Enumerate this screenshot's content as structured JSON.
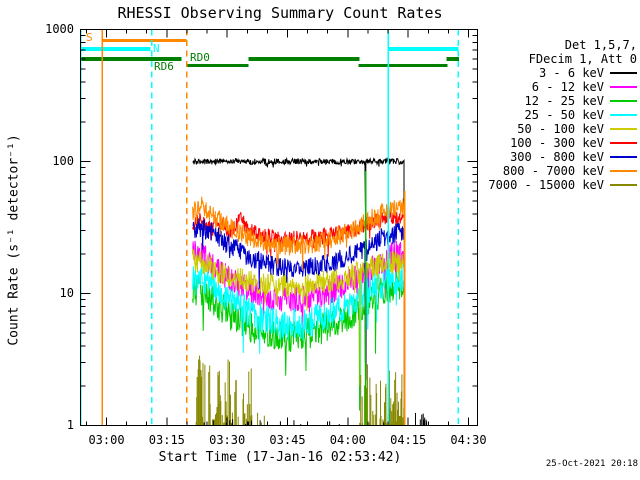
{
  "title": "RHESSI Observing Summary Count Rates",
  "timestamp": "25-Oct-2021 20:18",
  "axes": {
    "xlabel": "Start Time (17-Jan-16 02:53:42)",
    "ylabel": "Count Rate (s⁻¹ detector⁻¹)",
    "x_ticks": [
      "03:00",
      "03:15",
      "03:30",
      "03:45",
      "04:00",
      "04:15",
      "04:30"
    ],
    "y_ticks": [
      "1000",
      "100",
      "10",
      "1"
    ]
  },
  "legend": {
    "det": "Det 1,5,7,",
    "fdecim": "FDecim 1, Att 0",
    "entries": [
      {
        "label": "3 - 6 keV",
        "color": "#000000"
      },
      {
        "label": "6 - 12 keV",
        "color": "#ff00ff"
      },
      {
        "label": "12 - 25 keV",
        "color": "#00cc00"
      },
      {
        "label": "25 - 50 keV",
        "color": "#00ffff"
      },
      {
        "label": "50 - 100 keV",
        "color": "#cccc00"
      },
      {
        "label": "100 - 300 keV",
        "color": "#ff0000"
      },
      {
        "label": "300 - 800 keV",
        "color": "#0000cc"
      },
      {
        "label": "800 - 7000 keV",
        "color": "#ff8800"
      },
      {
        "label": "7000 - 15000 keV",
        "color": "#878700"
      }
    ]
  },
  "flags": {
    "s": {
      "label": "S",
      "color": "#ff8800",
      "bars": [
        [
          -1.0,
          19.9
        ]
      ]
    },
    "n": {
      "label": "N",
      "color": "#00ffff",
      "bars": [
        [
          -6.45,
          10.9
        ],
        [
          70.1,
          87.5
        ]
      ]
    },
    "rd0": {
      "label": "RD0",
      "color": "#008000",
      "bars": [
        [
          -6.45,
          18.7
        ],
        [
          35.3,
          62.9
        ],
        [
          84.5,
          87.6
        ]
      ]
    },
    "rd6": {
      "label": "RD6",
      "color": "#008000",
      "bars": [
        [
          19.9,
          35.3
        ],
        [
          62.7,
          84.8
        ]
      ]
    }
  },
  "event_lines": [
    {
      "time": -6.45,
      "color": "#00ffff",
      "style": "solid",
      "v_top": 1000
    },
    {
      "time": -1.0,
      "color": "#ff8800",
      "style": "solid",
      "v_top": 1000
    },
    {
      "time": 11.2,
      "color": "#00ffff",
      "style": "dashed",
      "v_top": 1000
    },
    {
      "time": 19.9,
      "color": "#ff8800",
      "style": "dashed",
      "v_top": 1000
    },
    {
      "time": 64.4,
      "color": "#00bb00",
      "style": "solid",
      "v_top": 85
    },
    {
      "time": 70.0,
      "color": "#00ffff",
      "style": "solid",
      "v_top": 1000
    },
    {
      "time": 74.15,
      "color": "#ff8800",
      "style": "solid",
      "v_top": 60
    },
    {
      "time": 87.5,
      "color": "#00ffff",
      "style": "dashed",
      "v_top": 1000
    }
  ],
  "chart_data": {
    "type": "line",
    "title": "RHESSI Observing Summary Count Rates",
    "xlabel": "Start Time (17-Jan-16 02:53:42)",
    "ylabel": "Count Rate (s⁻¹ detector⁻¹)",
    "x_units": "minutes after 03:00 on 17-Jan-16",
    "x_range": [
      -6.5,
      92.3
    ],
    "y_scale": "log",
    "y_range": [
      1,
      1000
    ],
    "data_span": [
      21.4,
      74.0
    ],
    "series": [
      {
        "name": "3 - 6 keV",
        "color": "#000000",
        "noise": 0.022,
        "anchors": [
          [
            21.4,
            100
          ],
          [
            74,
            100
          ]
        ],
        "drops": [
          {
            "t": 64.4,
            "v": 45
          }
        ]
      },
      {
        "name": "6 - 12 keV",
        "color": "#ff00ff",
        "noise": 0.1,
        "anchors": [
          [
            21.4,
            21
          ],
          [
            24,
            19
          ],
          [
            28,
            15
          ],
          [
            32,
            12
          ],
          [
            36,
            10.5
          ],
          [
            40,
            9.5
          ],
          [
            44,
            9
          ],
          [
            48,
            9
          ],
          [
            52,
            9.5
          ],
          [
            56,
            10.5
          ],
          [
            60,
            12
          ],
          [
            64,
            14
          ],
          [
            67,
            16
          ],
          [
            70,
            18.5
          ],
          [
            72,
            20
          ],
          [
            74,
            20
          ]
        ],
        "drops": [
          {
            "t": 63.0,
            "v": 1.6
          },
          {
            "t": 64.6,
            "v": 2.2
          }
        ]
      },
      {
        "name": "12 - 25 keV",
        "color": "#00cc00",
        "noise": 0.12,
        "anchors": [
          [
            21.4,
            11
          ],
          [
            24,
            10
          ],
          [
            28,
            8
          ],
          [
            32,
            6.5
          ],
          [
            36,
            5.5
          ],
          [
            40,
            5
          ],
          [
            44,
            4.7
          ],
          [
            48,
            4.8
          ],
          [
            52,
            5.2
          ],
          [
            56,
            5.8
          ],
          [
            60,
            6.8
          ],
          [
            64,
            8
          ],
          [
            67,
            9.5
          ],
          [
            70,
            11
          ],
          [
            74,
            12
          ]
        ],
        "drops": [
          {
            "t": 62.9,
            "v": 1.3
          },
          {
            "t": 64.4,
            "v": 1.8
          },
          {
            "t": 66.9,
            "v": 3.5
          }
        ]
      },
      {
        "name": "25 - 50 keV",
        "color": "#00ffff",
        "noise": 0.12,
        "anchors": [
          [
            21.4,
            14
          ],
          [
            24,
            13
          ],
          [
            28,
            10.5
          ],
          [
            32,
            8.3
          ],
          [
            36,
            7
          ],
          [
            40,
            6.2
          ],
          [
            44,
            5.8
          ],
          [
            48,
            5.9
          ],
          [
            52,
            6.3
          ],
          [
            56,
            7
          ],
          [
            60,
            8.2
          ],
          [
            64,
            9.8
          ],
          [
            67,
            11
          ],
          [
            70,
            12.5
          ],
          [
            74,
            13.5
          ]
        ],
        "drops": [
          {
            "t": 63.2,
            "v": 1.5
          },
          {
            "t": 64.5,
            "v": 2.0
          }
        ]
      },
      {
        "name": "50 - 100 keV",
        "color": "#cccc00",
        "noise": 0.09,
        "anchors": [
          [
            21.4,
            18
          ],
          [
            24,
            17
          ],
          [
            28,
            14.5
          ],
          [
            32,
            13
          ],
          [
            36,
            12.2
          ],
          [
            40,
            11.8
          ],
          [
            44,
            11.5
          ],
          [
            48,
            11.6
          ],
          [
            52,
            12
          ],
          [
            56,
            12.6
          ],
          [
            60,
            13.5
          ],
          [
            64,
            14.8
          ],
          [
            67,
            16
          ],
          [
            70,
            17
          ],
          [
            74,
            17.5
          ]
        ],
        "drops": [
          {
            "t": 63.0,
            "v": 2.0
          },
          {
            "t": 64.4,
            "v": 2.5
          }
        ]
      },
      {
        "name": "100 - 300 keV",
        "color": "#ff0000",
        "noise": 0.06,
        "anchors": [
          [
            21.4,
            33
          ],
          [
            23,
            36
          ],
          [
            26,
            31
          ],
          [
            29,
            34
          ],
          [
            31,
            29
          ],
          [
            33.5,
            38
          ],
          [
            35,
            31
          ],
          [
            38,
            28
          ],
          [
            42,
            26.5
          ],
          [
            46,
            26
          ],
          [
            50,
            26.5
          ],
          [
            54,
            27.5
          ],
          [
            58,
            29
          ],
          [
            62,
            31
          ],
          [
            65,
            33.5
          ],
          [
            68,
            36
          ],
          [
            70.5,
            38
          ],
          [
            72.5,
            36
          ],
          [
            74,
            35
          ]
        ],
        "drops": []
      },
      {
        "name": "300 - 800 keV",
        "color": "#0000cc",
        "noise": 0.075,
        "anchors": [
          [
            21.4,
            30
          ],
          [
            23.5,
            32
          ],
          [
            27,
            28
          ],
          [
            31,
            23
          ],
          [
            35,
            19.5
          ],
          [
            39,
            17
          ],
          [
            43,
            15.8
          ],
          [
            47,
            15.4
          ],
          [
            51,
            15.8
          ],
          [
            55,
            16.8
          ],
          [
            59,
            18.5
          ],
          [
            63,
            21
          ],
          [
            66,
            24
          ],
          [
            69,
            27
          ],
          [
            72,
            29
          ],
          [
            74,
            30
          ]
        ],
        "drops": [
          {
            "t": 64.4,
            "v": 3.0
          }
        ]
      },
      {
        "name": "800 - 7000 keV",
        "color": "#ff8800",
        "noise": 0.075,
        "anchors": [
          [
            21.4,
            42
          ],
          [
            23.5,
            46
          ],
          [
            27,
            39
          ],
          [
            31,
            31
          ],
          [
            35,
            27
          ],
          [
            39,
            24.5
          ],
          [
            43,
            23.2
          ],
          [
            47,
            23
          ],
          [
            51,
            23.8
          ],
          [
            55,
            25.5
          ],
          [
            59,
            28.5
          ],
          [
            63,
            32.5
          ],
          [
            66,
            37
          ],
          [
            69,
            41
          ],
          [
            72,
            44
          ],
          [
            74,
            45
          ]
        ],
        "drops": []
      },
      {
        "name": "7000 - 15000 keV",
        "color": "#878700",
        "noise": 0,
        "anchors": [],
        "clusters": [
          {
            "t0": 22.3,
            "t1": 36,
            "vmax": 3.4,
            "density": 0.5
          },
          {
            "t0": 36,
            "t1": 40,
            "vmax": 1.25,
            "density": 0.22
          },
          {
            "t0": 62.6,
            "t1": 69,
            "vmax": 3.2,
            "density": 0.38
          },
          {
            "t0": 69,
            "t1": 74,
            "vmax": 2.7,
            "density": 0.92
          }
        ]
      }
    ],
    "extra_spikes": [
      {
        "name": "residual-low-rate",
        "color": "#000000",
        "clusters": [
          {
            "t0": 74.3,
            "t1": 80.5,
            "vmax": 1.3,
            "density": 0.22
          },
          {
            "t0": 22,
            "t1": 74,
            "vmax": 1.12,
            "density": 0.05
          }
        ]
      }
    ]
  }
}
